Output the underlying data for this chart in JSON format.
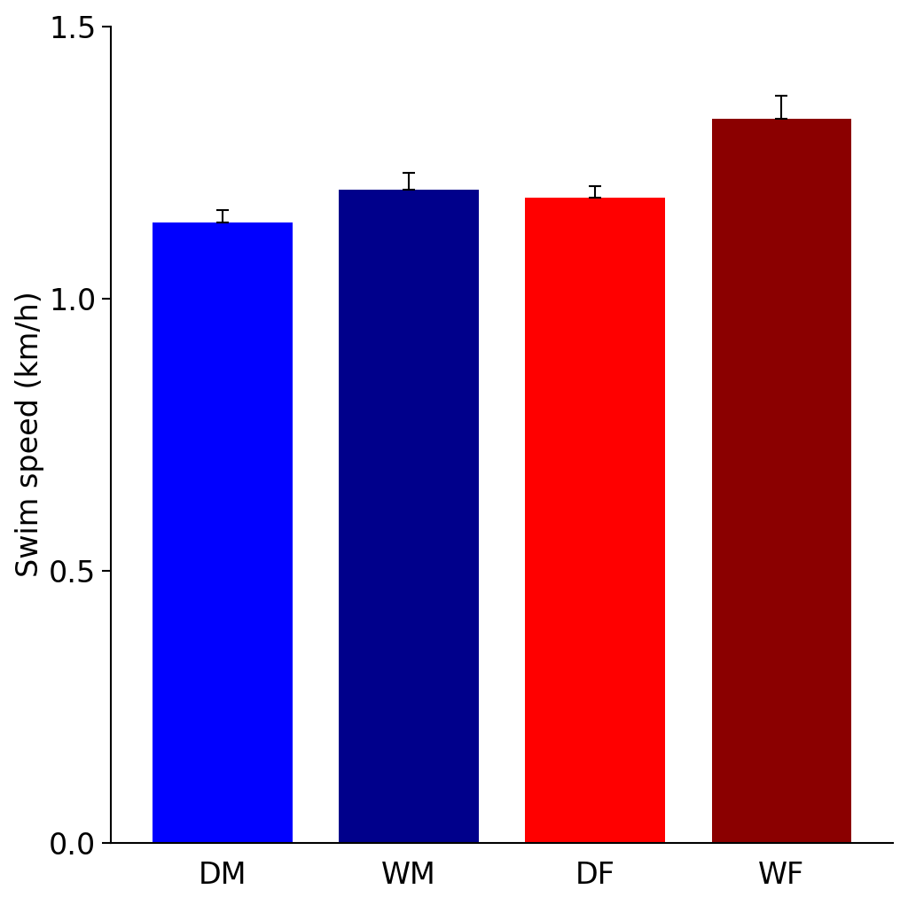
{
  "categories": [
    "DM",
    "WM",
    "DF",
    "WF"
  ],
  "values": [
    1.14,
    1.2,
    1.185,
    1.33
  ],
  "errors": [
    0.022,
    0.03,
    0.022,
    0.042
  ],
  "bar_colors": [
    "#0000FF",
    "#00008B",
    "#FF0000",
    "#8B0000"
  ],
  "ylabel": "Swim speed (km/h)",
  "ylim": [
    0,
    1.5
  ],
  "yticks": [
    0.0,
    0.5,
    1.0,
    1.5
  ],
  "bar_width": 0.75,
  "background_color": "#FFFFFF",
  "tick_labelsize": 24,
  "ylabel_fontsize": 24,
  "xlabel_fontsize": 24,
  "error_capsize": 5,
  "error_linewidth": 1.5
}
